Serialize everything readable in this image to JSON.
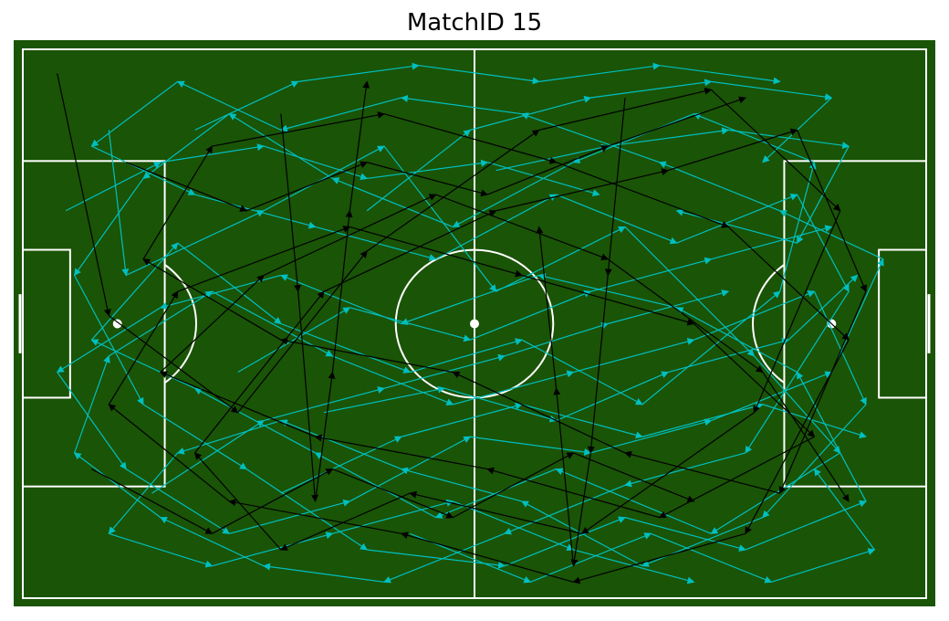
{
  "chart_data": {
    "type": "pass-map",
    "title": "MatchID 15",
    "grid": false,
    "legend": "none",
    "pitch": {
      "length": 105,
      "width": 68
    },
    "colors": {
      "pitch": "#1a5406",
      "lines": "#ffffff",
      "series_a": "#00bfc0",
      "series_b": "#000000"
    },
    "series": [
      {
        "color_key": "series_a",
        "passes": [
          [
            10,
            10,
            12,
            28
          ],
          [
            12,
            28,
            28,
            20
          ],
          [
            28,
            20,
            42,
            12
          ],
          [
            42,
            12,
            55,
            30
          ],
          [
            55,
            30,
            70,
            22
          ],
          [
            70,
            22,
            85,
            38
          ],
          [
            85,
            38,
            95,
            50
          ],
          [
            95,
            50,
            80,
            60
          ],
          [
            80,
            60,
            62,
            52
          ],
          [
            62,
            52,
            48,
            58
          ],
          [
            48,
            58,
            34,
            50
          ],
          [
            34,
            50,
            20,
            42
          ],
          [
            20,
            42,
            8,
            36
          ],
          [
            8,
            36,
            18,
            24
          ],
          [
            18,
            24,
            30,
            34
          ],
          [
            30,
            34,
            45,
            40
          ],
          [
            45,
            40,
            58,
            36
          ],
          [
            58,
            36,
            72,
            44
          ],
          [
            72,
            44,
            88,
            30
          ],
          [
            88,
            30,
            92,
            14
          ],
          [
            92,
            14,
            78,
            8
          ],
          [
            78,
            8,
            64,
            14
          ],
          [
            64,
            14,
            50,
            22
          ],
          [
            50,
            22,
            36,
            16
          ],
          [
            36,
            16,
            24,
            8
          ],
          [
            24,
            8,
            14,
            16
          ],
          [
            14,
            16,
            6,
            28
          ],
          [
            6,
            28,
            14,
            44
          ],
          [
            14,
            44,
            26,
            52
          ],
          [
            26,
            52,
            40,
            62
          ],
          [
            40,
            62,
            56,
            64
          ],
          [
            56,
            64,
            70,
            58
          ],
          [
            70,
            58,
            84,
            62
          ],
          [
            84,
            62,
            98,
            56
          ],
          [
            98,
            56,
            90,
            40
          ],
          [
            90,
            40,
            76,
            32
          ],
          [
            76,
            32,
            60,
            28
          ],
          [
            60,
            28,
            44,
            34
          ],
          [
            44,
            34,
            30,
            28
          ],
          [
            30,
            28,
            16,
            32
          ],
          [
            16,
            32,
            4,
            40
          ],
          [
            4,
            40,
            12,
            52
          ],
          [
            12,
            52,
            24,
            60
          ],
          [
            24,
            60,
            38,
            56
          ],
          [
            38,
            56,
            52,
            48
          ],
          [
            52,
            48,
            66,
            50
          ],
          [
            66,
            50,
            80,
            46
          ],
          [
            80,
            46,
            94,
            40
          ],
          [
            94,
            40,
            100,
            26
          ],
          [
            100,
            26,
            88,
            20
          ],
          [
            88,
            20,
            74,
            14
          ],
          [
            74,
            14,
            58,
            8
          ],
          [
            58,
            8,
            44,
            6
          ],
          [
            44,
            6,
            30,
            10
          ],
          [
            30,
            10,
            18,
            4
          ],
          [
            18,
            4,
            8,
            12
          ],
          [
            8,
            12,
            20,
            18
          ],
          [
            20,
            18,
            34,
            22
          ],
          [
            34,
            22,
            48,
            26
          ],
          [
            48,
            26,
            62,
            18
          ],
          [
            62,
            18,
            76,
            24
          ],
          [
            76,
            24,
            90,
            18
          ],
          [
            90,
            18,
            96,
            30
          ],
          [
            96,
            30,
            84,
            50
          ],
          [
            84,
            50,
            70,
            54
          ],
          [
            70,
            54,
            56,
            60
          ],
          [
            56,
            60,
            42,
            66
          ],
          [
            42,
            66,
            28,
            64
          ],
          [
            28,
            64,
            16,
            58
          ],
          [
            16,
            58,
            6,
            50
          ],
          [
            6,
            50,
            10,
            38
          ],
          [
            10,
            38,
            22,
            30
          ],
          [
            22,
            30,
            36,
            38
          ],
          [
            36,
            38,
            50,
            44
          ],
          [
            50,
            44,
            64,
            40
          ],
          [
            64,
            40,
            78,
            36
          ],
          [
            78,
            36,
            92,
            30
          ],
          [
            92,
            30,
            98,
            44
          ],
          [
            98,
            44,
            86,
            58
          ],
          [
            86,
            58,
            72,
            64
          ],
          [
            72,
            64,
            58,
            56
          ],
          [
            58,
            56,
            44,
            52
          ],
          [
            44,
            52,
            30,
            46
          ],
          [
            30,
            46,
            18,
            50
          ],
          [
            18,
            50,
            10,
            60
          ],
          [
            10,
            60,
            22,
            64
          ],
          [
            22,
            64,
            36,
            60
          ],
          [
            36,
            60,
            50,
            56
          ],
          [
            50,
            56,
            64,
            62
          ],
          [
            64,
            62,
            78,
            66
          ],
          [
            40,
            20,
            52,
            10
          ],
          [
            52,
            10,
            66,
            6
          ],
          [
            66,
            6,
            80,
            4
          ],
          [
            80,
            4,
            94,
            6
          ],
          [
            94,
            6,
            86,
            14
          ],
          [
            25,
            40,
            38,
            32
          ],
          [
            38,
            32,
            52,
            36
          ],
          [
            52,
            36,
            66,
            30
          ],
          [
            66,
            30,
            80,
            26
          ],
          [
            80,
            26,
            94,
            22
          ],
          [
            30,
            55,
            44,
            48
          ],
          [
            44,
            48,
            58,
            44
          ],
          [
            58,
            44,
            72,
            48
          ],
          [
            72,
            48,
            86,
            44
          ],
          [
            86,
            44,
            98,
            48
          ],
          [
            20,
            10,
            32,
            4
          ],
          [
            32,
            4,
            46,
            2
          ],
          [
            46,
            2,
            60,
            4
          ],
          [
            60,
            4,
            74,
            2
          ],
          [
            74,
            2,
            88,
            4
          ],
          [
            15,
            55,
            28,
            46
          ],
          [
            28,
            46,
            42,
            42
          ],
          [
            42,
            42,
            56,
            38
          ],
          [
            56,
            38,
            68,
            34
          ],
          [
            68,
            34,
            82,
            30
          ],
          [
            35,
            45,
            49,
            42
          ],
          [
            49,
            42,
            62,
            46
          ],
          [
            62,
            46,
            75,
            40
          ],
          [
            75,
            40,
            89,
            36
          ],
          [
            89,
            36,
            97,
            28
          ],
          [
            55,
            15,
            68,
            12
          ],
          [
            68,
            12,
            82,
            10
          ],
          [
            82,
            10,
            96,
            12
          ],
          [
            96,
            12,
            90,
            24
          ],
          [
            90,
            24,
            76,
            20
          ],
          [
            45,
            60,
            59,
            66
          ],
          [
            59,
            66,
            73,
            60
          ],
          [
            73,
            60,
            87,
            66
          ],
          [
            87,
            66,
            99,
            62
          ],
          [
            99,
            62,
            92,
            52
          ],
          [
            5,
            20,
            16,
            14
          ],
          [
            16,
            14,
            28,
            12
          ],
          [
            28,
            12,
            40,
            16
          ],
          [
            40,
            16,
            54,
            14
          ],
          [
            54,
            14,
            67,
            18
          ]
        ]
      },
      {
        "color_key": "series_b",
        "passes": [
          [
            4,
            3,
            10,
            33
          ],
          [
            10,
            33,
            25,
            45
          ],
          [
            25,
            45,
            40,
            25
          ],
          [
            40,
            25,
            60,
            10
          ],
          [
            60,
            10,
            80,
            5
          ],
          [
            80,
            5,
            95,
            20
          ],
          [
            95,
            20,
            85,
            45
          ],
          [
            85,
            45,
            65,
            60
          ],
          [
            65,
            60,
            45,
            55
          ],
          [
            45,
            55,
            30,
            62
          ],
          [
            30,
            62,
            20,
            50
          ],
          [
            20,
            50,
            35,
            30
          ],
          [
            35,
            30,
            55,
            20
          ],
          [
            55,
            20,
            75,
            15
          ],
          [
            75,
            15,
            90,
            10
          ],
          [
            90,
            10,
            98,
            30
          ],
          [
            98,
            30,
            88,
            55
          ],
          [
            88,
            55,
            70,
            50
          ],
          [
            70,
            50,
            50,
            40
          ],
          [
            50,
            40,
            30,
            36
          ],
          [
            30,
            36,
            14,
            26
          ],
          [
            14,
            26,
            22,
            12
          ],
          [
            22,
            12,
            42,
            8
          ],
          [
            42,
            8,
            62,
            14
          ],
          [
            62,
            14,
            82,
            22
          ],
          [
            82,
            22,
            96,
            36
          ],
          [
            96,
            36,
            84,
            60
          ],
          [
            84,
            60,
            64,
            66
          ],
          [
            64,
            66,
            44,
            60
          ],
          [
            44,
            60,
            24,
            56
          ],
          [
            24,
            56,
            10,
            44
          ],
          [
            10,
            44,
            18,
            30
          ],
          [
            18,
            30,
            38,
            22
          ],
          [
            38,
            22,
            58,
            28
          ],
          [
            58,
            28,
            78,
            34
          ],
          [
            78,
            34,
            92,
            48
          ],
          [
            92,
            48,
            74,
            58
          ],
          [
            74,
            58,
            54,
            52
          ],
          [
            54,
            52,
            34,
            48
          ],
          [
            34,
            48,
            16,
            40
          ],
          [
            16,
            40,
            28,
            28
          ],
          [
            28,
            28,
            48,
            18
          ],
          [
            48,
            18,
            68,
            26
          ],
          [
            68,
            26,
            86,
            40
          ],
          [
            86,
            40,
            96,
            56
          ],
          [
            8,
            52,
            22,
            60
          ],
          [
            22,
            60,
            36,
            52
          ],
          [
            36,
            52,
            50,
            58
          ],
          [
            50,
            58,
            64,
            50
          ],
          [
            64,
            50,
            78,
            56
          ],
          [
            12,
            14,
            26,
            20
          ],
          [
            26,
            20,
            40,
            14
          ],
          [
            40,
            14,
            54,
            18
          ],
          [
            54,
            18,
            68,
            12
          ],
          [
            68,
            12,
            84,
            6
          ],
          [
            30,
            8,
            32,
            30
          ],
          [
            32,
            30,
            34,
            56
          ],
          [
            34,
            56,
            36,
            40
          ],
          [
            36,
            40,
            38,
            20
          ],
          [
            38,
            20,
            40,
            4
          ],
          [
            70,
            6,
            68,
            28
          ],
          [
            68,
            28,
            66,
            50
          ],
          [
            66,
            50,
            64,
            64
          ],
          [
            64,
            64,
            62,
            42
          ],
          [
            62,
            42,
            60,
            22
          ]
        ]
      }
    ]
  }
}
